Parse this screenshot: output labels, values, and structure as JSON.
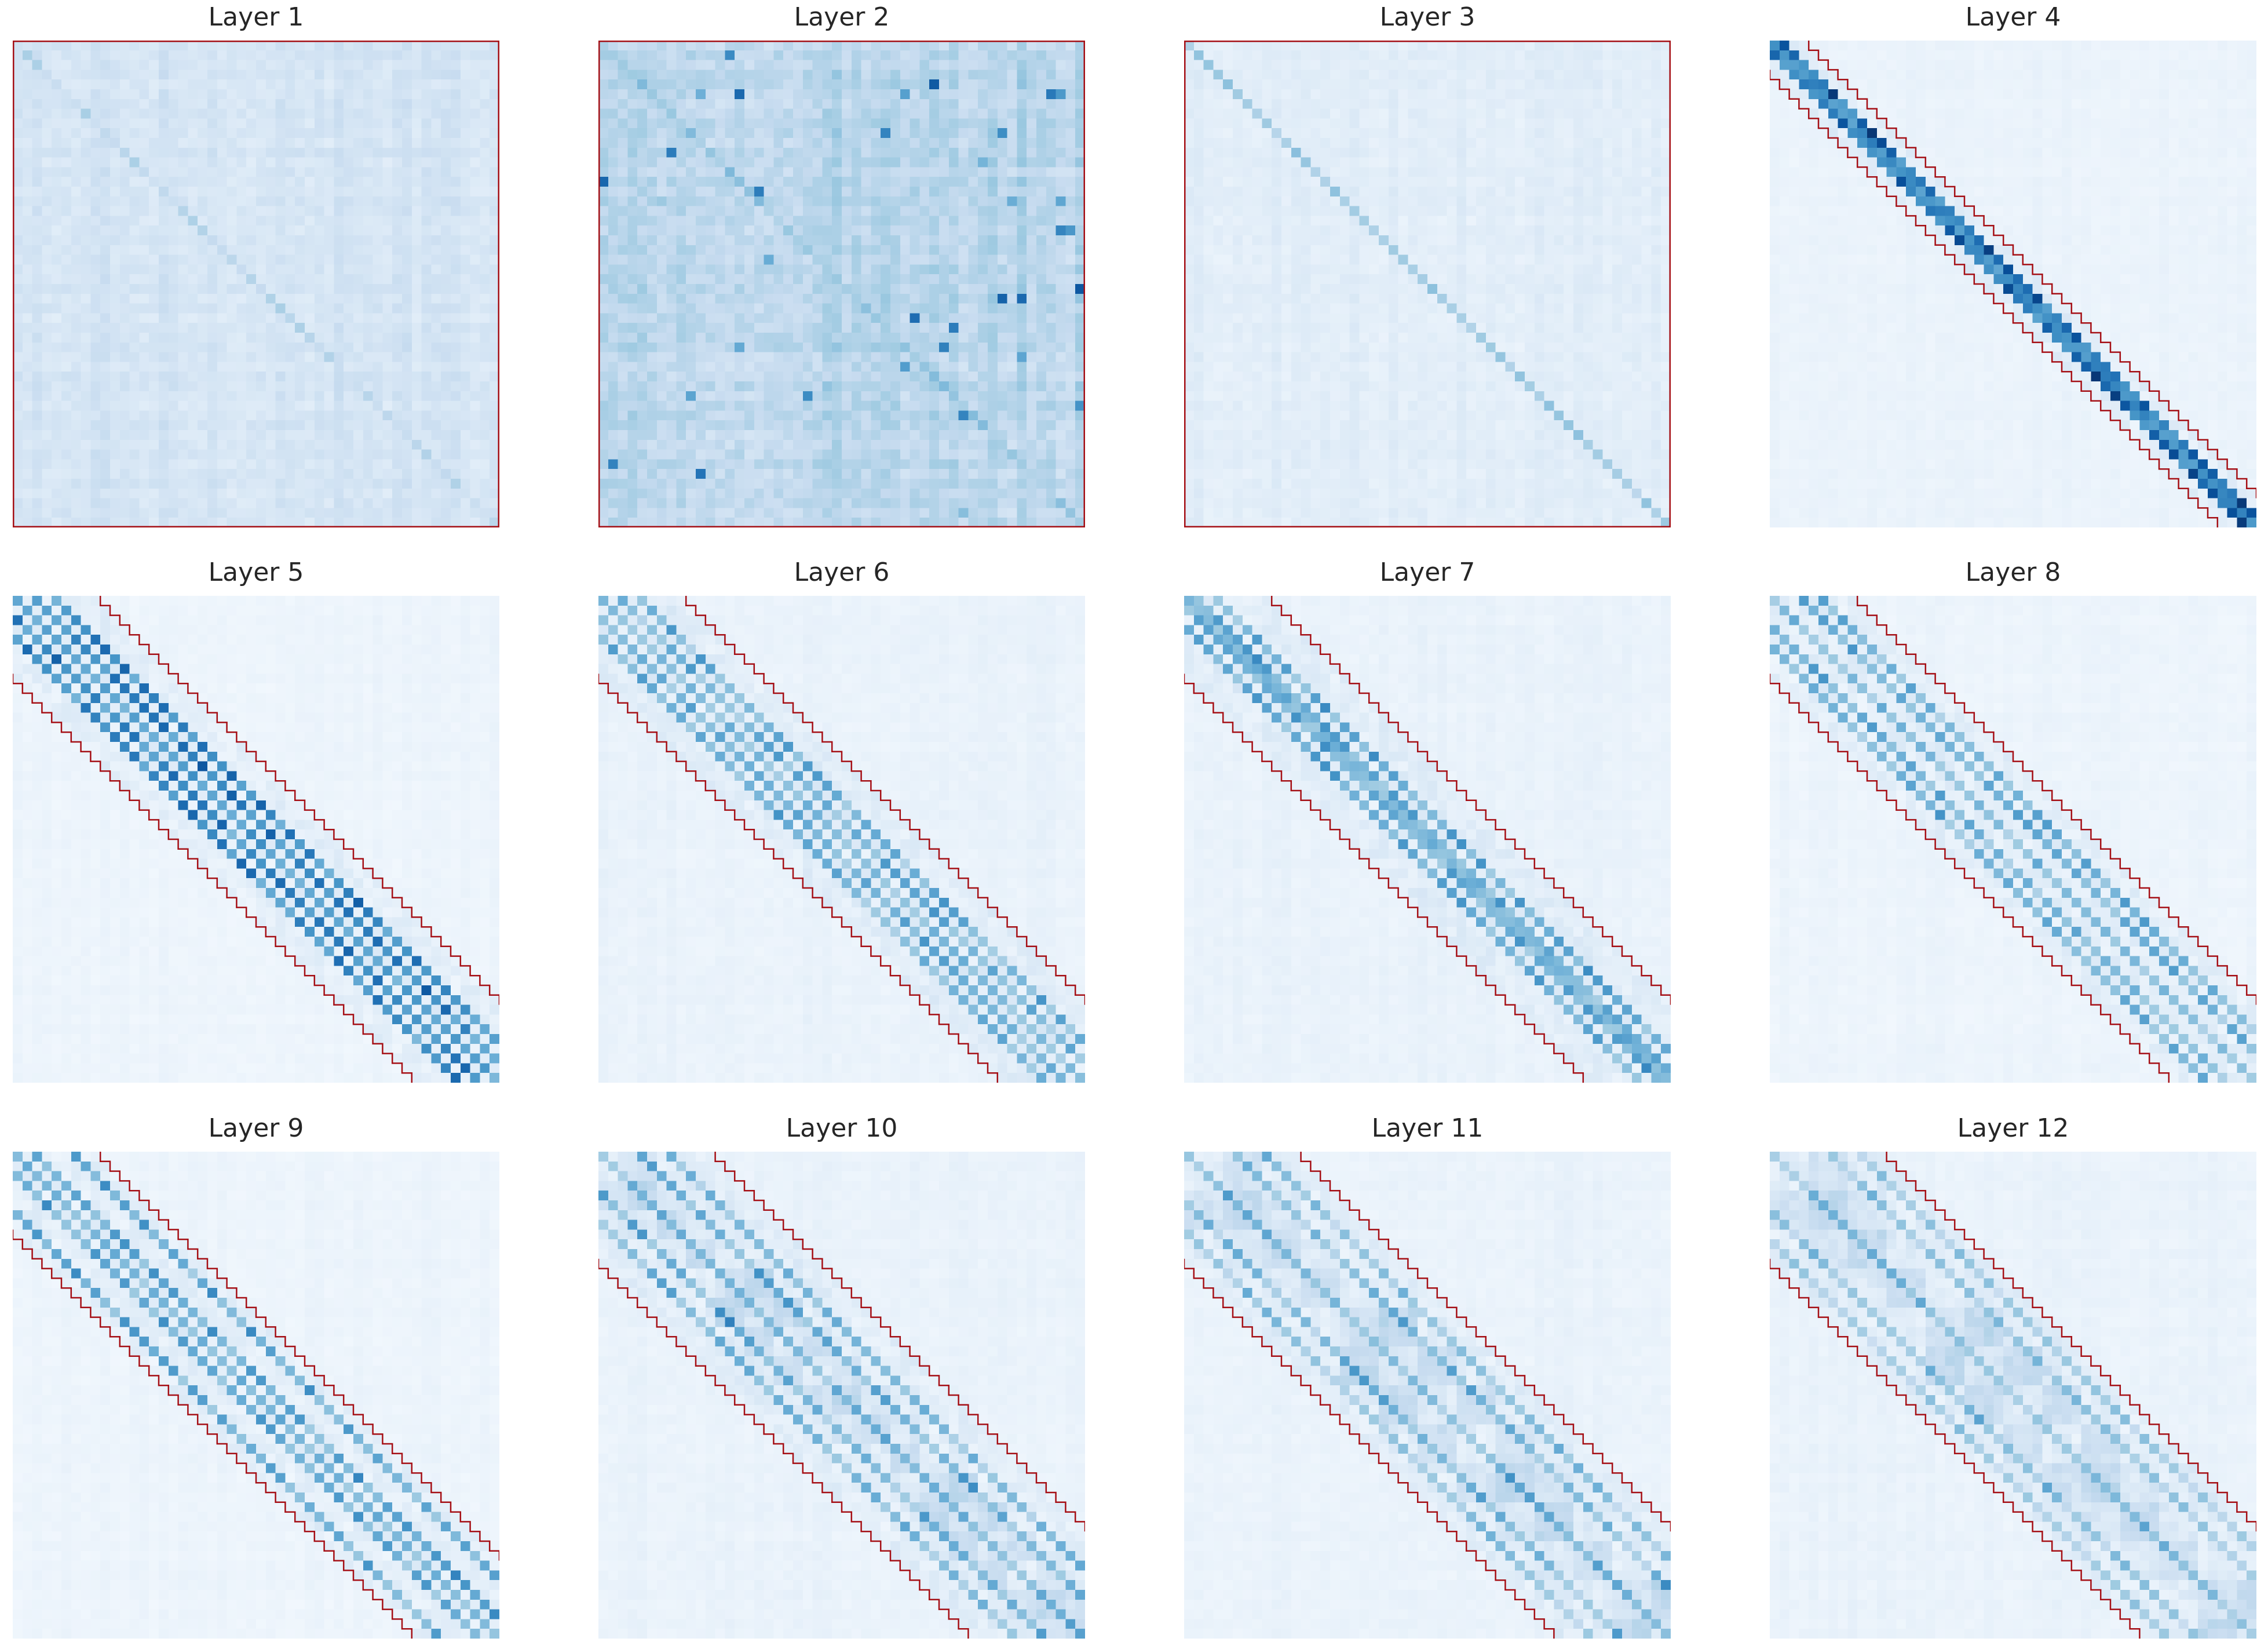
{
  "chart_data": [
    {
      "type": "heatmap",
      "title": "Layer 1",
      "colormap": "Blues",
      "band": "full",
      "band_width": 0,
      "base": 0.1,
      "noise": 0.16,
      "diag": 0.35,
      "diag_offsets": [],
      "blocks": 0,
      "strong": 0.0
    },
    {
      "type": "heatmap",
      "title": "Layer 2",
      "colormap": "Blues",
      "band": "full",
      "band_width": 0,
      "base": 0.16,
      "noise": 0.26,
      "diag": 0.55,
      "diag_offsets": [],
      "blocks": 0,
      "strong": 0.5
    },
    {
      "type": "heatmap",
      "title": "Layer 3",
      "colormap": "Blues",
      "band": "full",
      "band_width": 0,
      "base": 0.06,
      "noise": 0.1,
      "diag": 0.5,
      "diag_offsets": [],
      "blocks": 0,
      "strong": 0.0
    },
    {
      "type": "heatmap",
      "title": "Layer 4",
      "colormap": "Blues",
      "band": "narrow",
      "band_width": 3,
      "base": 0.04,
      "noise": 0.05,
      "diag": 0.92,
      "diag_offsets": [
        1
      ],
      "blocks": 0,
      "strong": 0.0
    },
    {
      "type": "heatmap",
      "title": "Layer 5",
      "colormap": "Blues",
      "band": "wide",
      "band_width": 8,
      "base": 0.03,
      "noise": 0.05,
      "diag": 0.78,
      "diag_offsets": [
        2,
        4
      ],
      "blocks": 0,
      "strong": 0.0
    },
    {
      "type": "heatmap",
      "title": "Layer 6",
      "colormap": "Blues",
      "band": "wide",
      "band_width": 8,
      "base": 0.04,
      "noise": 0.06,
      "diag": 0.55,
      "diag_offsets": [
        2,
        4
      ],
      "blocks": 0,
      "strong": 0.0
    },
    {
      "type": "heatmap",
      "title": "Layer 7",
      "colormap": "Blues",
      "band": "wide",
      "band_width": 8,
      "base": 0.04,
      "noise": 0.06,
      "diag": 0.6,
      "diag_offsets": [
        1,
        3
      ],
      "blocks": 0,
      "strong": 0.0
    },
    {
      "type": "heatmap",
      "title": "Layer 8",
      "colormap": "Blues",
      "band": "wide",
      "band_width": 8,
      "base": 0.03,
      "noise": 0.05,
      "diag": 0.55,
      "diag_offsets": [
        3,
        5
      ],
      "blocks": 0,
      "strong": 0.0
    },
    {
      "type": "heatmap",
      "title": "Layer 9",
      "colormap": "Blues",
      "band": "wide",
      "band_width": 8,
      "base": 0.03,
      "noise": 0.05,
      "diag": 0.6,
      "diag_offsets": [
        2,
        6
      ],
      "blocks": 0,
      "strong": 0.0
    },
    {
      "type": "heatmap",
      "title": "Layer 10",
      "colormap": "Blues",
      "band": "wide",
      "band_width": 11,
      "base": 0.04,
      "noise": 0.06,
      "diag": 0.5,
      "diag_offsets": [
        4,
        7
      ],
      "blocks": 3,
      "strong": 0.0
    },
    {
      "type": "heatmap",
      "title": "Layer 11",
      "colormap": "Blues",
      "band": "wide",
      "band_width": 11,
      "base": 0.04,
      "noise": 0.06,
      "diag": 0.45,
      "diag_offsets": [
        5,
        8
      ],
      "blocks": 4,
      "strong": 0.0
    },
    {
      "type": "heatmap",
      "title": "Layer 12",
      "colormap": "Blues",
      "band": "wide",
      "band_width": 11,
      "base": 0.04,
      "noise": 0.06,
      "diag": 0.4,
      "diag_offsets": [
        6,
        9
      ],
      "blocks": 4,
      "strong": 0.0
    }
  ],
  "colors": {
    "band_outline": "#a50f15",
    "cmap_low": "#f7fbff",
    "cmap_high": "#08306b",
    "title_text": "#262626"
  }
}
